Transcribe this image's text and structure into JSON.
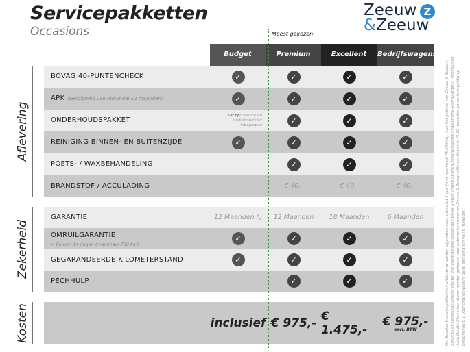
{
  "header": {
    "title": "Servicepakketten",
    "subtitle": "Occasions",
    "logo": {
      "line1": "Zeeuw",
      "line2_amp": "&",
      "line2": "Zeeuw",
      "mark": "Z"
    },
    "badge": "Meest gekozen"
  },
  "columns": [
    "Budget",
    "Premium",
    "Excellent",
    "Bedrijfswagens"
  ],
  "colors": {
    "budget": "#555555",
    "premium": "#444444",
    "excellent": "#222222",
    "bedrijfswagens": "#444444",
    "highlight_border": "#3a9a3a"
  },
  "sections": [
    {
      "label": "Aflevering",
      "rows": [
        {
          "label": "BOVAG 40-PUNTENCHECK",
          "cells": [
            "check",
            "check",
            "check",
            "check"
          ]
        },
        {
          "label": "APK",
          "note": "(Geldigheid van minimaal 12 maanden)",
          "cells": [
            "check",
            "check",
            "check",
            "check"
          ]
        },
        {
          "label": "ONDERHOUDSPAKKET",
          "budget_note_bold": "Let op:",
          "budget_note": "Service en onderhoud niet inbegrepen",
          "cells": [
            "",
            "check",
            "check",
            "check"
          ]
        },
        {
          "label": "REINIGING BINNEN- EN BUITENZIJDE",
          "cells": [
            "check",
            "check",
            "check",
            "check"
          ]
        },
        {
          "label": "POETS- / WAXBEHANDELING",
          "cells": [
            "",
            "check",
            "check",
            "check"
          ]
        },
        {
          "label": "BRANDSTOF / ACCULADING",
          "cells": [
            "",
            "€ 40,-",
            "€ 40,-",
            "€ 40,-"
          ]
        }
      ]
    },
    {
      "label": "Zekerheid",
      "rows": [
        {
          "label": "GARANTIE",
          "cells": [
            "12 Maanden *)",
            "12 Maanden",
            "18 Maanden",
            "6 Maanden"
          ]
        },
        {
          "label": "OMRUILGARANTIE",
          "sub": "✓  Binnen 14 dagen (maximaal 750 km)",
          "cells": [
            "check",
            "check",
            "check",
            "check"
          ]
        },
        {
          "label": "GEGARANDEERDE KILOMETERSTAND",
          "cells": [
            "check",
            "check",
            "check",
            "check"
          ]
        },
        {
          "label": "PECHHULP",
          "cells": [
            "",
            "check",
            "check",
            "check"
          ]
        }
      ]
    },
    {
      "label": "Kosten",
      "prices": [
        "inclusief",
        "€ 975,-",
        "€ 1.475,-",
        "€ 975,-"
      ],
      "price_note": "excl. BTW"
    }
  ],
  "footnote": "Het Excellent-servicepakket kan uitsluitend worden afgesloten voor auto's tot 5 jaar (met maximaal 75.000km). Aan het gebruik van Zeeuw & Zeeuw+ Services en Uitdeuken zonder spuiten zijn voorwaarden verbonden welke u kunt vinden op www.zeeuwenzeeuw.nl/algemene-voorwaarden/. Pechhulp en Accu Health Check kan alleen worden geboden voor automerken waarvan Zeeuw & Zeeuw officieel dealer is. *) 12 maanden garantie is geldig op personenauto's, voor bedrijfswagens geldt een garantie van 6 maanden."
}
